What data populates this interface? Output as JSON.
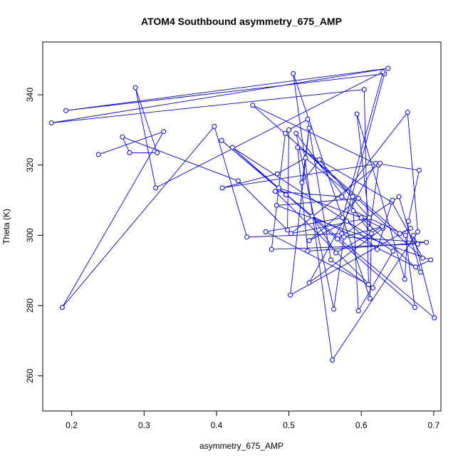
{
  "chart_data": {
    "type": "line",
    "title": "ATOM4 Southbound asymmetry_675_AMP",
    "xlabel": "asymmetry_675_AMP",
    "ylabel": "Theta (K)",
    "xlim": [
      0.16,
      0.71
    ],
    "ylim": [
      250,
      355
    ],
    "xticks": [
      0.2,
      0.3,
      0.4,
      0.5,
      0.6,
      0.7
    ],
    "xtick_labels": [
      "0.2",
      "0.3",
      "0.4",
      "0.5",
      "0.6",
      "0.7"
    ],
    "yticks": [
      260,
      280,
      300,
      320,
      340
    ],
    "ytick_labels": [
      "260",
      "280",
      "300",
      "320",
      "340"
    ],
    "grid": false,
    "series": [
      {
        "color": "#0000ff",
        "marker": "open-circle",
        "x": [
          0.237,
          0.327,
          0.187,
          0.397,
          0.442,
          0.573,
          0.632,
          0.192,
          0.637,
          0.172,
          0.604,
          0.61,
          0.468,
          0.574,
          0.63,
          0.316,
          0.288,
          0.318,
          0.28,
          0.27,
          0.43,
          0.498,
          0.5,
          0.526,
          0.558,
          0.616,
          0.481,
          0.573,
          0.664,
          0.678,
          0.56,
          0.506,
          0.612,
          0.614,
          0.51,
          0.562,
          0.576,
          0.69,
          0.526,
          0.512,
          0.642,
          0.685,
          0.495,
          0.476,
          0.678,
          0.672,
          0.701,
          0.407,
          0.496,
          0.486,
          0.6,
          0.63,
          0.528,
          0.62,
          0.68,
          0.665,
          0.66,
          0.594,
          0.612,
          0.624,
          0.45,
          0.653,
          0.668,
          0.502,
          0.528,
          0.518,
          0.542,
          0.611,
          0.503,
          0.626,
          0.408,
          0.484,
          0.523,
          0.588,
          0.596,
          0.644,
          0.422,
          0.674,
          0.661,
          0.589,
          0.682,
          0.652,
          0.567,
          0.629,
          0.565,
          0.532,
          0.675,
          0.696,
          0.483,
          0.596,
          0.528,
          0.58,
          0.622,
          0.643
        ],
        "y": [
          323,
          329.5,
          279.5,
          331,
          299.5,
          300.5,
          346,
          335.5,
          347.5,
          332,
          341.5,
          286,
          301,
          305,
          346.5,
          313.5,
          342,
          323.5,
          323.5,
          328,
          315.5,
          301.5,
          330,
          333,
          293,
          285,
          312.5,
          311,
          335,
          301,
          264.5,
          346,
          282,
          300.5,
          329,
          279,
          299.5,
          298,
          295.5,
          325,
          309.5,
          293.5,
          329,
          296,
          297.5,
          300,
          276.5,
          327,
          311.5,
          313.5,
          305,
          302,
          286.5,
          320.5,
          318.5,
          304,
          287.5,
          334.5,
          302,
          320,
          337,
          300.5,
          302,
          283,
          330.5,
          315,
          321.5,
          305,
          300.5,
          320.5,
          313.5,
          317.5,
          322,
          311,
          278.5,
          295.5,
          325,
          279.5,
          300,
          307,
          289.5,
          311,
          299,
          302.5,
          295,
          305.5,
          291,
          293,
          308.5,
          310.5,
          298.5,
          304,
          296,
          310
        ]
      }
    ]
  }
}
